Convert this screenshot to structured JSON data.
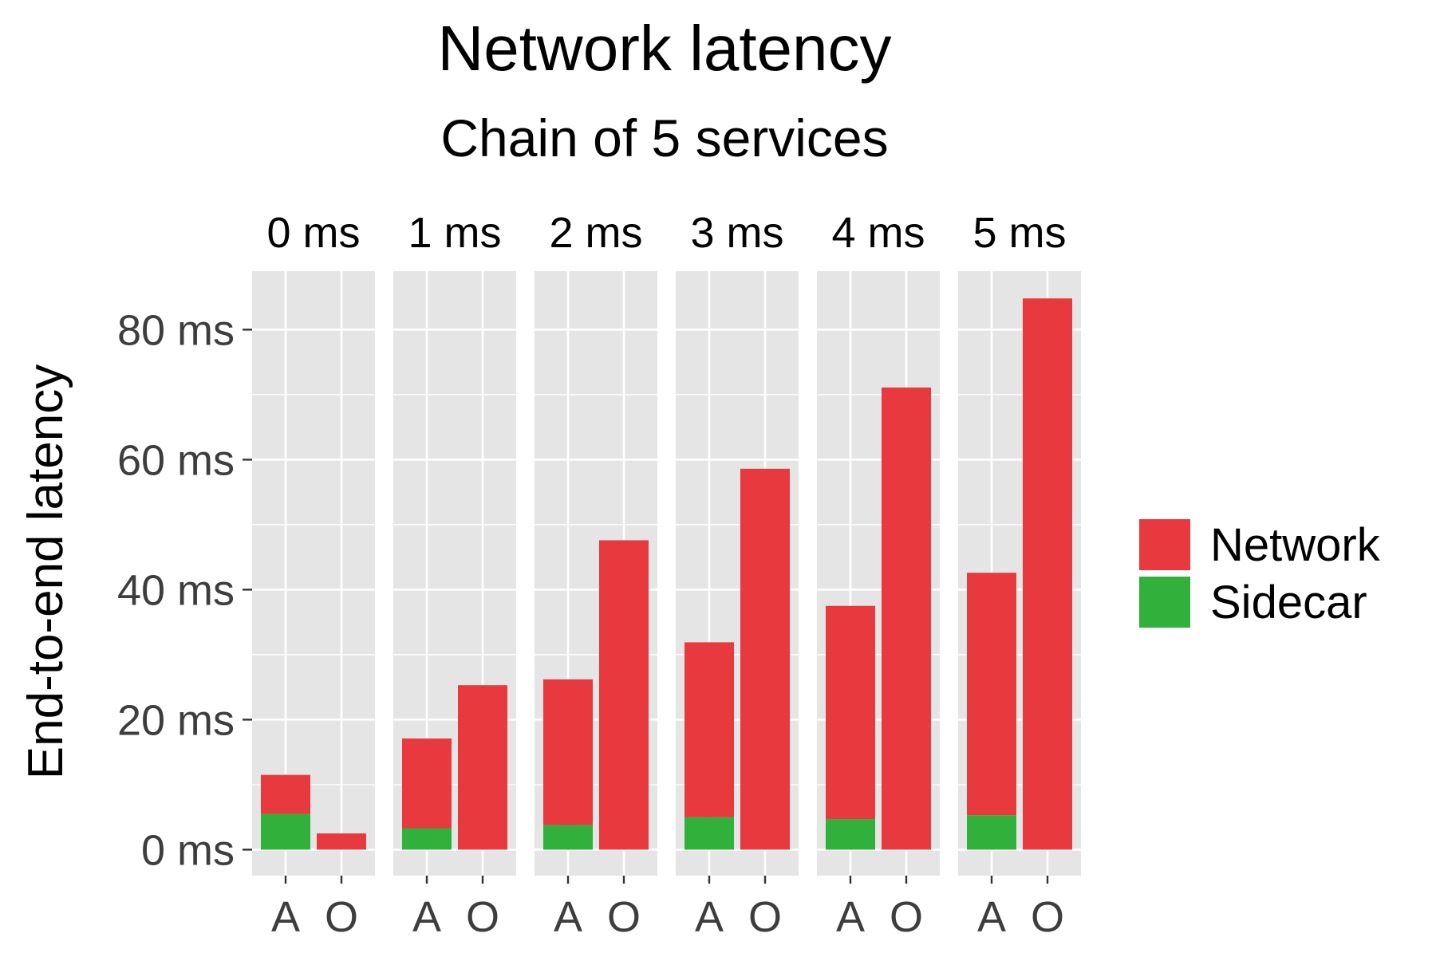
{
  "chart_data": {
    "type": "bar",
    "stacked": true,
    "title": "Network latency",
    "subtitle": "Chain of 5 services",
    "ylabel": "End-to-end latency",
    "xlabel": "",
    "ylim": [
      -4,
      89
    ],
    "yticks": [
      0,
      20,
      40,
      60,
      80
    ],
    "ytick_labels": [
      "0 ms",
      "20 ms",
      "40 ms",
      "60 ms",
      "80 ms"
    ],
    "x_categories": [
      "A",
      "O"
    ],
    "facets": [
      "0 ms",
      "1 ms",
      "2 ms",
      "3 ms",
      "4 ms",
      "5 ms"
    ],
    "legend_position": "right",
    "legend_items": [
      {
        "name": "Network",
        "color": "#e8393e"
      },
      {
        "name": "Sidecar",
        "color": "#31b03b"
      }
    ],
    "grid": true,
    "panel_background": "#e5e5e5",
    "data": [
      {
        "facet": "0 ms",
        "A": {
          "Sidecar": 5.5,
          "Network": 6.0
        },
        "O": {
          "Sidecar": 0.0,
          "Network": 2.5
        }
      },
      {
        "facet": "1 ms",
        "A": {
          "Sidecar": 3.3,
          "Network": 13.8
        },
        "O": {
          "Sidecar": 0.0,
          "Network": 25.3
        }
      },
      {
        "facet": "2 ms",
        "A": {
          "Sidecar": 3.8,
          "Network": 22.4
        },
        "O": {
          "Sidecar": 0.0,
          "Network": 47.6
        }
      },
      {
        "facet": "3 ms",
        "A": {
          "Sidecar": 5.0,
          "Network": 26.9
        },
        "O": {
          "Sidecar": 0.0,
          "Network": 58.6
        }
      },
      {
        "facet": "4 ms",
        "A": {
          "Sidecar": 4.7,
          "Network": 32.8
        },
        "O": {
          "Sidecar": 0.0,
          "Network": 71.1
        }
      },
      {
        "facet": "5 ms",
        "A": {
          "Sidecar": 5.3,
          "Network": 37.3
        },
        "O": {
          "Sidecar": 0.0,
          "Network": 84.8
        }
      }
    ]
  }
}
